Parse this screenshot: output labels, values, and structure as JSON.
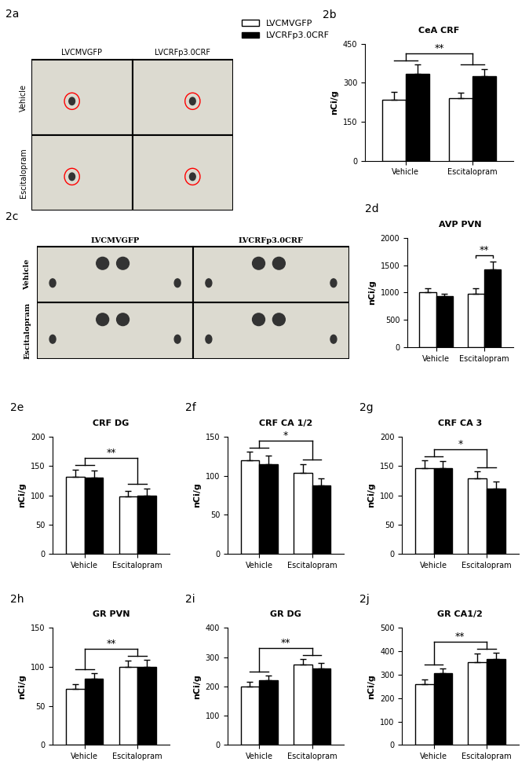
{
  "image_panels": [
    {
      "label": "2a",
      "columns": [
        "LVCMVGFP",
        "LVCRFp3.0CRF"
      ],
      "rows": [
        "Vehicle",
        "Escitalopram"
      ]
    },
    {
      "label": "2c",
      "columns": [
        "LVCMVGFP",
        "LVCRFp3.0CRF"
      ],
      "rows": [
        "Vehicle",
        "Escitalopram"
      ]
    }
  ],
  "chart_data": [
    {
      "type": "bar",
      "panel": "2b",
      "title": "CeA CRF",
      "y_label": "nCi/g",
      "legend": "upper center",
      "categories": [
        "Vehicle",
        "Escitalopram"
      ],
      "ylim": [
        0,
        450
      ],
      "yticks": [
        0,
        150,
        300,
        450
      ],
      "series": [
        {
          "name": "LVCMVGFP",
          "color": "#ffffff",
          "values": [
            235,
            240
          ],
          "errors": [
            30,
            20
          ]
        },
        {
          "name": "LVCRFp3.0CRF",
          "color": "#000000",
          "values": [
            335,
            325
          ],
          "errors": [
            35,
            28
          ]
        }
      ],
      "annotations": [
        {
          "text": "**"
        }
      ]
    },
    {
      "type": "bar",
      "panel": "2d",
      "title": "AVP PVN",
      "y_label": "nCi/g",
      "categories": [
        "Vehicle",
        "Escitalopram"
      ],
      "ylim": [
        0,
        2000
      ],
      "yticks": [
        0,
        500,
        1000,
        1500,
        2000
      ],
      "series": [
        {
          "name": "LVCMVGFP",
          "color": "#ffffff",
          "values": [
            1000,
            980
          ],
          "errors": [
            80,
            100
          ]
        },
        {
          "name": "LVCRFp3.0CRF",
          "color": "#000000",
          "values": [
            930,
            1420
          ],
          "errors": [
            50,
            140
          ]
        }
      ],
      "annotations": [
        {
          "text": "**",
          "category": "Escitalopram"
        }
      ]
    },
    {
      "type": "bar",
      "panel": "2e",
      "title": "CRF DG",
      "y_label": "nCi/g",
      "categories": [
        "Vehicle",
        "Escitalopram"
      ],
      "ylim": [
        0,
        200
      ],
      "yticks": [
        0,
        50,
        100,
        150,
        200
      ],
      "series": [
        {
          "name": "LVCMVGFP",
          "color": "#ffffff",
          "values": [
            132,
            98
          ],
          "errors": [
            12,
            10
          ]
        },
        {
          "name": "LVCRFp3.0CRF",
          "color": "#000000",
          "values": [
            130,
            100
          ],
          "errors": [
            12,
            12
          ]
        }
      ],
      "annotations": [
        {
          "text": "**"
        }
      ]
    },
    {
      "type": "bar",
      "panel": "2f",
      "title": "CRF CA 1/2",
      "y_label": "nCi/g",
      "categories": [
        "Vehicle",
        "Escitalopram"
      ],
      "ylim": [
        0,
        150
      ],
      "yticks": [
        0,
        50,
        100,
        150
      ],
      "series": [
        {
          "name": "LVCMVGFP",
          "color": "#ffffff",
          "values": [
            120,
            104
          ],
          "errors": [
            11,
            11
          ]
        },
        {
          "name": "LVCRFp3.0CRF",
          "color": "#000000",
          "values": [
            115,
            88
          ],
          "errors": [
            11,
            9
          ]
        }
      ],
      "annotations": [
        {
          "text": "*"
        }
      ]
    },
    {
      "type": "bar",
      "panel": "2g",
      "title": "CRF CA 3",
      "y_label": "nCi/g",
      "categories": [
        "Vehicle",
        "Escitalopram"
      ],
      "ylim": [
        0,
        200
      ],
      "yticks": [
        0,
        50,
        100,
        150,
        200
      ],
      "series": [
        {
          "name": "LVCMVGFP",
          "color": "#ffffff",
          "values": [
            147,
            129
          ],
          "errors": [
            13,
            12
          ]
        },
        {
          "name": "LVCRFp3.0CRF",
          "color": "#000000",
          "values": [
            146,
            112
          ],
          "errors": [
            12,
            11
          ]
        }
      ],
      "annotations": [
        {
          "text": "*"
        }
      ]
    },
    {
      "type": "bar",
      "panel": "2h",
      "title": "GR PVN",
      "y_label": "nCi/g",
      "categories": [
        "Vehicle",
        "Escitalopram"
      ],
      "ylim": [
        0,
        150
      ],
      "yticks": [
        0,
        50,
        100,
        150
      ],
      "series": [
        {
          "name": "LVCMVGFP",
          "color": "#ffffff",
          "values": [
            72,
            100
          ],
          "errors": [
            6,
            8
          ]
        },
        {
          "name": "LVCRFp3.0CRF",
          "color": "#000000",
          "values": [
            85,
            100
          ],
          "errors": [
            7,
            9
          ]
        }
      ],
      "annotations": [
        {
          "text": "**"
        }
      ]
    },
    {
      "type": "bar",
      "panel": "2i",
      "title": "GR DG",
      "y_label": "nCi/g",
      "categories": [
        "Vehicle",
        "Escitalopram"
      ],
      "ylim": [
        0,
        400
      ],
      "yticks": [
        0,
        100,
        200,
        300,
        400
      ],
      "series": [
        {
          "name": "LVCMVGFP",
          "color": "#ffffff",
          "values": [
            200,
            275
          ],
          "errors": [
            15,
            18
          ]
        },
        {
          "name": "LVCRFp3.0CRF",
          "color": "#000000",
          "values": [
            222,
            262
          ],
          "errors": [
            15,
            18
          ]
        }
      ],
      "annotations": [
        {
          "text": "**"
        }
      ]
    },
    {
      "type": "bar",
      "panel": "2j",
      "title": "GR CA1/2",
      "y_label": "nCi/g",
      "categories": [
        "Vehicle",
        "Escitalopram"
      ],
      "ylim": [
        0,
        500
      ],
      "yticks": [
        0,
        100,
        200,
        300,
        400,
        500
      ],
      "series": [
        {
          "name": "LVCMVGFP",
          "color": "#ffffff",
          "values": [
            260,
            355
          ],
          "errors": [
            20,
            35
          ]
        },
        {
          "name": "LVCRFp3.0CRF",
          "color": "#000000",
          "values": [
            305,
            368
          ],
          "errors": [
            22,
            25
          ]
        }
      ],
      "annotations": [
        {
          "text": "**"
        }
      ]
    }
  ]
}
